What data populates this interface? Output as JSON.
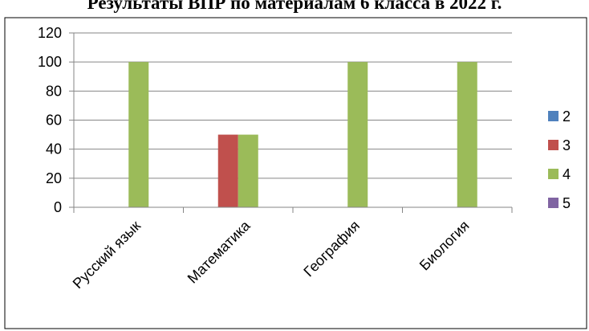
{
  "chart_data": {
    "type": "bar",
    "title": "Результаты ВПР по материалам 6 класса в 2022 г.",
    "categories": [
      "Русский язык",
      "Математика",
      "География",
      "Биология"
    ],
    "series": [
      {
        "name": "2",
        "color": "#4F81BD",
        "values": [
          0,
          0,
          0,
          0
        ]
      },
      {
        "name": "3",
        "color": "#C0504D",
        "values": [
          0,
          50,
          0,
          0
        ]
      },
      {
        "name": "4",
        "color": "#9BBB59",
        "values": [
          100,
          50,
          100,
          100
        ]
      },
      {
        "name": "5",
        "color": "#8064A2",
        "values": [
          0,
          0,
          0,
          0
        ]
      }
    ],
    "yticks": [
      "0",
      "20",
      "40",
      "60",
      "80",
      "100",
      "120"
    ],
    "ylim": [
      0,
      120
    ],
    "grid": true,
    "legend_position": "right"
  }
}
